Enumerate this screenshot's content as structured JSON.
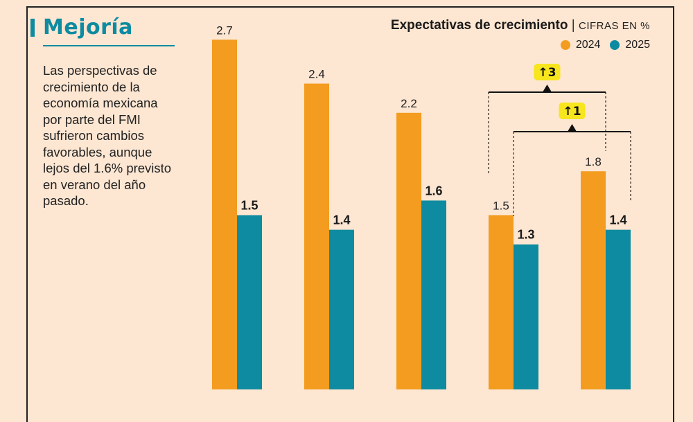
{
  "header": {
    "title": "Mejoría",
    "description": "Las perspectivas de crecimiento de la economía mexicana por parte del FMI sufrieron cambios favorables, aunque lejos del 1.6% previsto en verano del año pasado.",
    "chart_title": "Expectativas de crecimiento",
    "separator": "|",
    "units": "CIFRAS EN %"
  },
  "colors": {
    "s2024": "#f39c1f",
    "s2025": "#0e8ba0",
    "title": "#0e8ba0",
    "badge": "#f7e51e",
    "background": "#fde6d2"
  },
  "chart_data": {
    "type": "bar",
    "categories": [
      "",
      "",
      "",
      "",
      ""
    ],
    "series": [
      {
        "name": "2024",
        "values": [
          2.7,
          2.4,
          2.2,
          1.5,
          1.8
        ]
      },
      {
        "name": "2025",
        "values": [
          1.5,
          1.4,
          1.6,
          1.3,
          1.4
        ]
      }
    ],
    "value_labels_2024": [
      "2.7",
      "2.4",
      "2.2",
      "1.5",
      "1.8"
    ],
    "value_labels_2025": [
      "1.5",
      "1.4",
      "1.6",
      "1.3",
      "1.4"
    ],
    "annotations": [
      {
        "text": "3",
        "arrow": "↑",
        "from_group": 4,
        "to_group": 5,
        "series": "2024"
      },
      {
        "text": "1",
        "arrow": "↑",
        "from_group": 4,
        "to_group": 5,
        "series": "2025"
      }
    ],
    "legend_position": "top-right",
    "grid": false
  }
}
